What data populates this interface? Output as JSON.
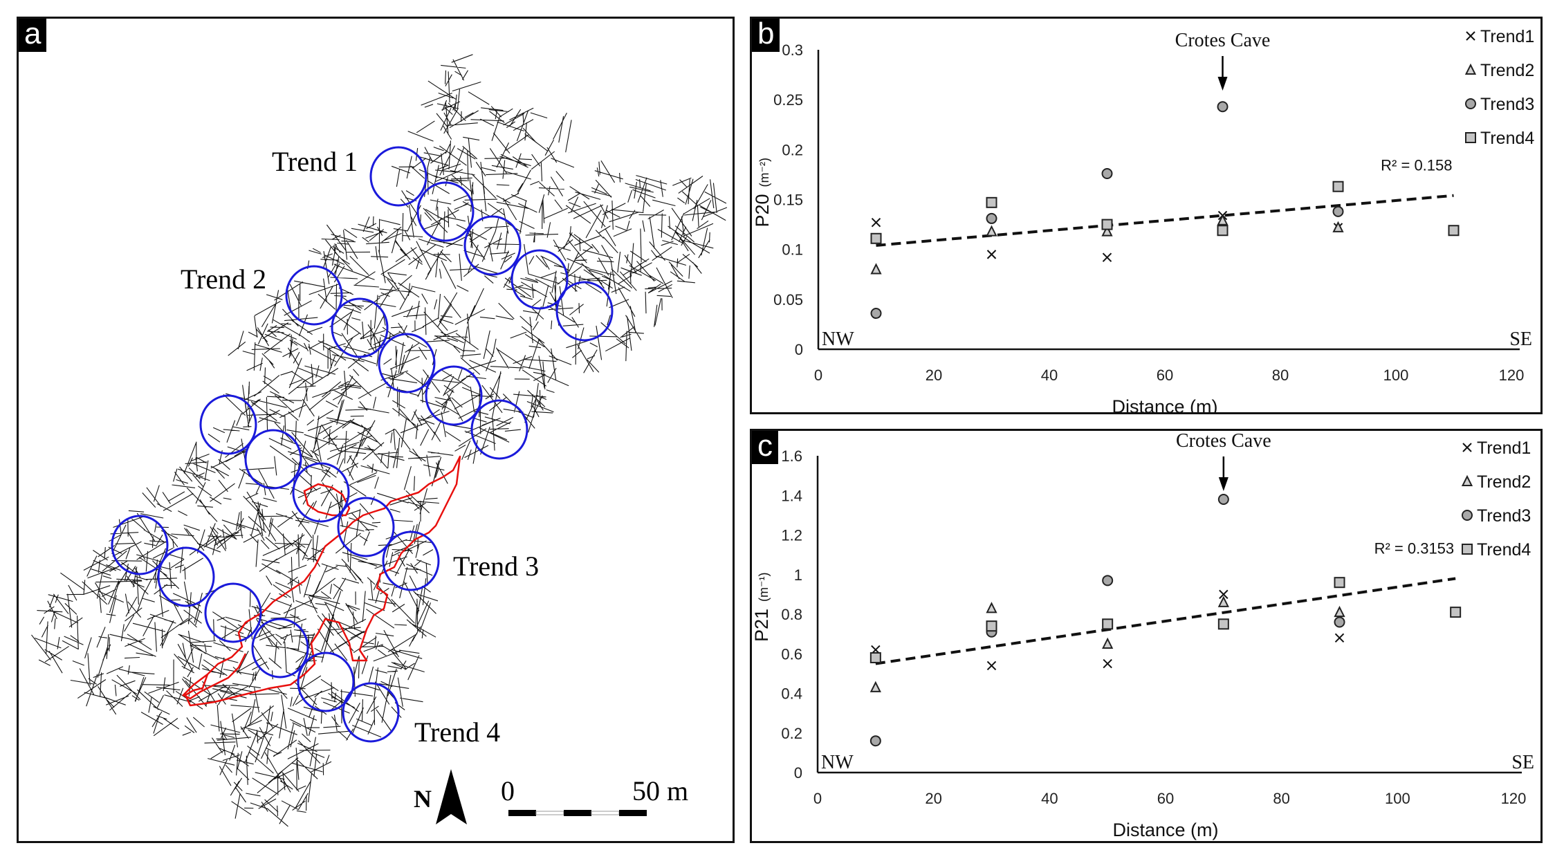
{
  "panels": {
    "a": {
      "tag": "a",
      "trend_labels": [
        "Trend 1",
        "Trend 2",
        "Trend 3",
        "Trend 4"
      ],
      "north_label": "N",
      "scale_bar": {
        "start_label": "0",
        "end_label": "50 m"
      },
      "colors": {
        "fractures": "#111111",
        "scanlines": "#1a1adb",
        "cave": "#e8100e"
      }
    },
    "b": {
      "tag": "b"
    },
    "c": {
      "tag": "c"
    }
  },
  "chart_data": [
    {
      "type": "scatter",
      "panel": "b",
      "title": "",
      "annotation": "Crotes Cave",
      "annotation_x": 70,
      "xlabel": "Distance (m)",
      "ylabel": "P20",
      "ylabel_unit": "(m⁻²)",
      "xlim": [
        0,
        120
      ],
      "ylim": [
        0,
        0.3
      ],
      "xticks": [
        "0",
        "20",
        "40",
        "60",
        "80",
        "100",
        "120"
      ],
      "yticks": [
        "0",
        "0.05",
        "0.1",
        "0.15",
        "0.2",
        "0.25",
        "0.3"
      ],
      "corner_labels": {
        "left": "NW",
        "right": "SE"
      },
      "legend_position": "top-right",
      "trendline": {
        "x": [
          10,
          110
        ],
        "y": [
          0.104,
          0.154
        ],
        "label": "R² = 0.158",
        "style": "dashed"
      },
      "x": [
        10,
        30,
        50,
        70,
        90,
        110
      ],
      "series": [
        {
          "name": "Trend1",
          "marker": "x",
          "values": [
            0.127,
            0.095,
            0.092,
            0.134,
            0.122,
            null
          ]
        },
        {
          "name": "Trend2",
          "marker": "triangle",
          "values": [
            0.08,
            0.118,
            0.118,
            0.129,
            0.122,
            null
          ]
        },
        {
          "name": "Trend3",
          "marker": "circle",
          "values": [
            0.036,
            0.131,
            0.176,
            0.243,
            0.138,
            null
          ]
        },
        {
          "name": "Trend4",
          "marker": "square",
          "values": [
            0.111,
            0.147,
            0.125,
            0.119,
            0.163,
            0.119
          ]
        }
      ]
    },
    {
      "type": "scatter",
      "panel": "c",
      "title": "",
      "annotation": "Crotes Cave",
      "annotation_x": 70,
      "xlabel": "Distance (m)",
      "ylabel": "P21",
      "ylabel_unit": "(m⁻¹)",
      "xlim": [
        0,
        120
      ],
      "ylim": [
        0,
        1.6
      ],
      "xticks": [
        "0",
        "20",
        "40",
        "60",
        "80",
        "100",
        "120"
      ],
      "yticks": [
        "0",
        "0.2",
        "0.4",
        "0.6",
        "0.8",
        "1",
        "1.2",
        "1.4",
        "1.6"
      ],
      "corner_labels": {
        "left": "NW",
        "right": "SE"
      },
      "legend_position": "top-right",
      "trendline": {
        "x": [
          10,
          110
        ],
        "y": [
          0.55,
          0.98
        ],
        "label": "R² = 0.3153",
        "style": "dashed"
      },
      "x": [
        10,
        30,
        50,
        70,
        90,
        110
      ],
      "series": [
        {
          "name": "Trend1",
          "marker": "x",
          "values": [
            0.62,
            0.54,
            0.55,
            0.9,
            0.68,
            null
          ]
        },
        {
          "name": "Trend2",
          "marker": "triangle",
          "values": [
            0.43,
            0.83,
            0.65,
            0.86,
            0.81,
            null
          ]
        },
        {
          "name": "Trend3",
          "marker": "circle",
          "values": [
            0.16,
            0.71,
            0.97,
            1.38,
            0.76,
            null
          ]
        },
        {
          "name": "Trend4",
          "marker": "square",
          "values": [
            0.58,
            0.74,
            0.75,
            0.75,
            0.96,
            0.81
          ]
        }
      ]
    }
  ]
}
